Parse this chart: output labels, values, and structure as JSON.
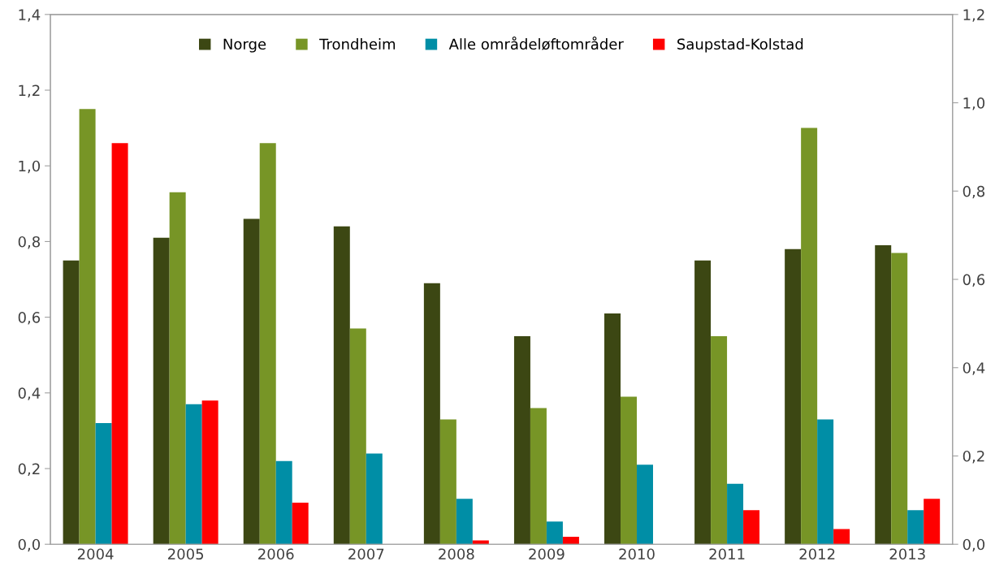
{
  "chart_data": {
    "type": "bar",
    "categories": [
      "2004",
      "2005",
      "2006",
      "2007",
      "2008",
      "2009",
      "2010",
      "2011",
      "2012",
      "2013"
    ],
    "series": [
      {
        "name": "Norge",
        "color": "#3c4713",
        "values": [
          0.75,
          0.81,
          0.86,
          0.84,
          0.69,
          0.55,
          0.61,
          0.75,
          0.78,
          0.79
        ]
      },
      {
        "name": "Trondheim",
        "color": "#779526",
        "values": [
          1.15,
          0.93,
          1.06,
          0.57,
          0.33,
          0.36,
          0.39,
          0.55,
          1.1,
          0.77
        ]
      },
      {
        "name": "Alle områdeløftområder",
        "color": "#008ea6",
        "values": [
          0.32,
          0.37,
          0.22,
          0.24,
          0.12,
          0.06,
          0.21,
          0.16,
          0.33,
          0.09
        ]
      },
      {
        "name": "Saupstad-Kolstad",
        "color": "#ff0000",
        "values": [
          1.06,
          0.38,
          0.11,
          null,
          0.01,
          0.02,
          null,
          0.09,
          0.04,
          0.12
        ]
      }
    ],
    "ylim": [
      0,
      1.4
    ],
    "yticks": [
      {
        "value": 0,
        "label": "0,0"
      },
      {
        "value": 0.2,
        "label": "0,2"
      },
      {
        "value": 0.4,
        "label": "0,4"
      },
      {
        "value": 0.6,
        "label": "0,6"
      },
      {
        "value": 0.8,
        "label": "0,8"
      },
      {
        "value": 1.0,
        "label": "1,0"
      },
      {
        "value": 1.2,
        "label": "1,2"
      },
      {
        "value": 1.4,
        "label": "1,4"
      }
    ],
    "y2lim": [
      0,
      1.2
    ],
    "y2ticks": [
      {
        "value": 0,
        "label": "0,0"
      },
      {
        "value": 0.2,
        "label": "0,2"
      },
      {
        "value": 0.4,
        "label": "0,4"
      },
      {
        "value": 0.6,
        "label": "0,6"
      },
      {
        "value": 0.8,
        "label": "0,8"
      },
      {
        "value": 1.0,
        "label": "1,0"
      },
      {
        "value": 1.2,
        "label": "1,2"
      }
    ],
    "grid": false,
    "legend": "top"
  }
}
